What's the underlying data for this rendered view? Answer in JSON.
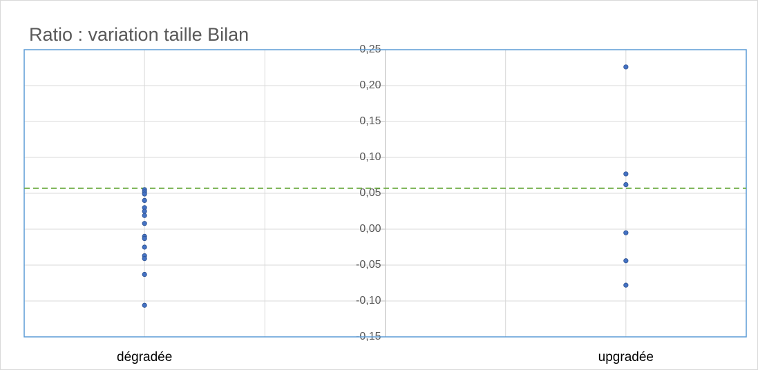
{
  "chart_data": {
    "type": "scatter",
    "title": "Ratio : variation taille Bilan",
    "series": [
      {
        "color": "#4472c4",
        "x": [
          1,
          1,
          1,
          1,
          1,
          1,
          1,
          1,
          1,
          1,
          1,
          1,
          1,
          1,
          1,
          5,
          5,
          5,
          5,
          5,
          5
        ],
        "values": [
          0.055,
          0.052,
          0.049,
          0.04,
          0.03,
          0.025,
          0.019,
          0.008,
          -0.01,
          -0.013,
          -0.025,
          -0.037,
          -0.041,
          -0.063,
          -0.106,
          0.226,
          0.077,
          0.062,
          -0.005,
          -0.044,
          -0.078
        ]
      }
    ],
    "xlim": [
      0,
      6
    ],
    "xticks": [
      {
        "value": 1,
        "label": "dégradée"
      },
      {
        "value": 2,
        "label": null
      },
      {
        "value": 3,
        "label": null
      },
      {
        "value": 4,
        "label": null
      },
      {
        "value": 5,
        "label": "upgradée"
      }
    ],
    "ylim": [
      -0.15,
      0.25
    ],
    "yticks": [
      {
        "value": -0.15,
        "label": "-0,15"
      },
      {
        "value": -0.1,
        "label": "-0,10"
      },
      {
        "value": -0.05,
        "label": "-0,05"
      },
      {
        "value": 0,
        "label": "0,00"
      },
      {
        "value": 0.05,
        "label": "0,05"
      },
      {
        "value": 0.1,
        "label": "0,10"
      },
      {
        "value": 0.15,
        "label": "0,15"
      },
      {
        "value": 0.2,
        "label": "0,20"
      },
      {
        "value": 0.25,
        "label": "0,25"
      }
    ],
    "grid": true,
    "reference_line": {
      "value": 0.057,
      "color": "#70ad47"
    }
  }
}
